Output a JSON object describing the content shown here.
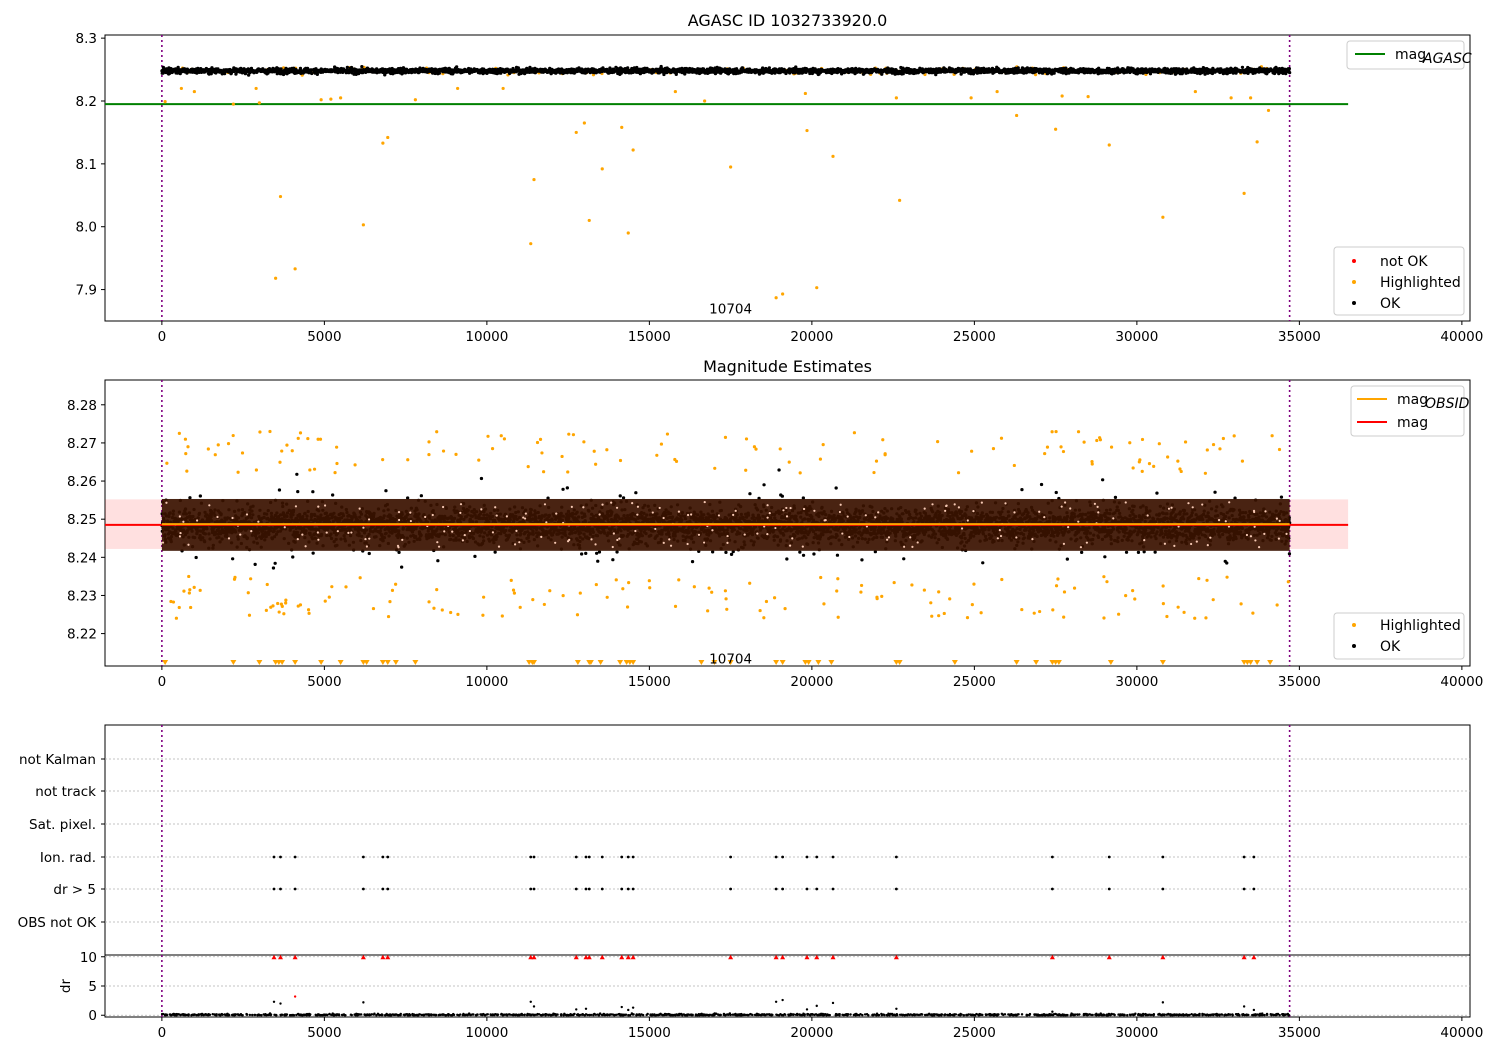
{
  "chart_data": [
    {
      "type": "scatter",
      "title": "AGASC ID 1032733920.0",
      "xlabel": "",
      "ylabel": "",
      "xlim": [
        -1750,
        40250
      ],
      "ylim": [
        7.85,
        8.305
      ],
      "xticks": [
        0,
        5000,
        10000,
        15000,
        20000,
        25000,
        30000,
        35000,
        40000
      ],
      "xtick_labels": [
        "0",
        "5000",
        "10000",
        "15000",
        "20000",
        "25000",
        "30000",
        "35000",
        "40000"
      ],
      "yticks": [
        7.9,
        8.0,
        8.1,
        8.2,
        8.3
      ],
      "ytick_labels": [
        "7.9",
        "8.0",
        "8.1",
        "8.2",
        "8.3"
      ],
      "grid": false,
      "obsid_boundaries": [
        0,
        34700
      ],
      "obsid_label": "10704",
      "obsid_label_at": [
        17500,
        7.87
      ],
      "mag_agasc": 8.195,
      "mag_agasc_x_range": [
        -1750,
        36500
      ],
      "ok_band": {
        "x_range": [
          0,
          34700
        ],
        "center": 8.248,
        "spread": 0.009
      },
      "highlighted_points": [
        [
          3500,
          7.918
        ],
        [
          4100,
          7.933
        ],
        [
          3650,
          8.048
        ],
        [
          6200,
          8.003
        ],
        [
          6800,
          8.133
        ],
        [
          6950,
          8.142
        ],
        [
          11350,
          7.973
        ],
        [
          11450,
          8.075
        ],
        [
          12750,
          8.15
        ],
        [
          13000,
          8.165
        ],
        [
          13150,
          8.01
        ],
        [
          13550,
          8.092
        ],
        [
          14150,
          8.158
        ],
        [
          14350,
          7.99
        ],
        [
          14500,
          8.122
        ],
        [
          17500,
          8.095
        ],
        [
          18900,
          7.887
        ],
        [
          19100,
          7.893
        ],
        [
          19850,
          8.153
        ],
        [
          20150,
          7.903
        ],
        [
          20650,
          8.112
        ],
        [
          22600,
          8.205
        ],
        [
          22700,
          8.042
        ],
        [
          26300,
          8.177
        ],
        [
          27500,
          8.155
        ],
        [
          27700,
          8.208
        ],
        [
          29150,
          8.13
        ],
        [
          30800,
          8.015
        ],
        [
          33300,
          8.053
        ],
        [
          33500,
          8.205
        ],
        [
          33700,
          8.135
        ],
        [
          34050,
          8.185
        ],
        [
          4900,
          8.202
        ],
        [
          5500,
          8.205
        ],
        [
          5200,
          8.203
        ],
        [
          7800,
          8.202
        ],
        [
          2200,
          8.195
        ],
        [
          3000,
          8.197
        ],
        [
          24900,
          8.205
        ],
        [
          28500,
          8.207
        ],
        [
          100,
          8.199
        ],
        [
          600,
          8.22
        ],
        [
          1000,
          8.215
        ],
        [
          2900,
          8.22
        ],
        [
          9100,
          8.22
        ],
        [
          10500,
          8.22
        ],
        [
          15800,
          8.215
        ],
        [
          16700,
          8.2
        ],
        [
          19800,
          8.212
        ],
        [
          25700,
          8.215
        ],
        [
          31800,
          8.215
        ],
        [
          32900,
          8.205
        ]
      ],
      "legends": [
        {
          "entries": [
            {
              "label": "mag",
              "sub": "AGASC",
              "color": "#008000",
              "kind": "line"
            }
          ],
          "placement": "upper right"
        },
        {
          "entries": [
            {
              "label": "not OK",
              "color": "#ff0000",
              "kind": "dot"
            },
            {
              "label": "Highlighted",
              "color": "#ffa500",
              "kind": "dot"
            },
            {
              "label": "OK",
              "color": "#000000",
              "kind": "dot"
            }
          ],
          "placement": "lower right"
        }
      ]
    },
    {
      "type": "scatter",
      "title": "Magnitude Estimates",
      "xlabel": "",
      "ylabel": "",
      "xlim": [
        -1750,
        40250
      ],
      "ylim": [
        8.2115,
        8.2865
      ],
      "xticks": [
        0,
        5000,
        10000,
        15000,
        20000,
        25000,
        30000,
        35000,
        40000
      ],
      "xtick_labels": [
        "0",
        "5000",
        "10000",
        "15000",
        "20000",
        "25000",
        "30000",
        "35000",
        "40000"
      ],
      "yticks": [
        8.22,
        8.23,
        8.24,
        8.25,
        8.26,
        8.27,
        8.28
      ],
      "ytick_labels": [
        "8.22",
        "8.23",
        "8.24",
        "8.25",
        "8.26",
        "8.27",
        "8.28"
      ],
      "grid": false,
      "obsid_boundaries": [
        0,
        34700
      ],
      "obsid_label": "10704",
      "obsid_label_at": [
        17500,
        8.2135
      ],
      "mag_obsid": 8.2487,
      "mag": 8.2485,
      "mag_x_range": [
        -1750,
        36500
      ],
      "mag_band": [
        8.2422,
        8.2552
      ],
      "ok_band": {
        "x_range": [
          0,
          34700
        ],
        "center": 8.2485,
        "spread": 0.0085
      },
      "clipped_low_markers": [
        100,
        2200,
        3000,
        3500,
        3600,
        3700,
        4100,
        4900,
        5500,
        6200,
        6300,
        6800,
        6950,
        7200,
        7800,
        11300,
        11400,
        11450,
        12800,
        13150,
        13200,
        13500,
        14100,
        14300,
        14400,
        14500,
        16600,
        17000,
        17500,
        18900,
        19100,
        19800,
        19900,
        20200,
        20600,
        22600,
        22700,
        24400,
        26300,
        26900,
        27400,
        27500,
        27600,
        29200,
        30800,
        33300,
        33400,
        33500,
        33700,
        34100
      ],
      "legends": [
        {
          "entries": [
            {
              "label": "mag",
              "sub": "OBSID",
              "color": "#ffa500",
              "kind": "line"
            },
            {
              "label": "mag",
              "sub": "",
              "color": "#ff0000",
              "kind": "line"
            }
          ],
          "placement": "upper right"
        },
        {
          "entries": [
            {
              "label": "Highlighted",
              "color": "#ffa500",
              "kind": "dot"
            },
            {
              "label": "OK",
              "color": "#000000",
              "kind": "dot"
            }
          ],
          "placement": "lower right"
        }
      ]
    },
    {
      "type": "scatter",
      "title": "",
      "xlabel": "",
      "ylabel": "",
      "xlim": [
        -1750,
        40250
      ],
      "categories": [
        "not Kalman",
        "not track",
        "Sat. pixel.",
        "Ion. rad.",
        "dr > 5",
        "OBS not OK"
      ],
      "grid": true,
      "obsid_boundaries": [
        0,
        34700
      ],
      "flag_times": [
        3450,
        3650,
        4100,
        6200,
        6800,
        6950,
        11350,
        11450,
        12750,
        13050,
        13150,
        13550,
        14150,
        14350,
        14500,
        17500,
        18900,
        19100,
        19850,
        20150,
        20650,
        22600,
        27400,
        29150,
        30800,
        33300,
        33600
      ],
      "flags": {
        "Ion. rad.": "flag_times",
        "dr > 5": "flag_times"
      }
    },
    {
      "type": "scatter",
      "title": "",
      "xlabel": "",
      "ylabel": "dr",
      "xlim": [
        -1750,
        40250
      ],
      "ylim": [
        -0.3,
        10.3
      ],
      "xticks": [
        0,
        5000,
        10000,
        15000,
        20000,
        25000,
        30000,
        35000,
        40000
      ],
      "xtick_labels": [
        "0",
        "5000",
        "10000",
        "15000",
        "20000",
        "25000",
        "30000",
        "35000",
        "40000"
      ],
      "yticks": [
        0,
        5,
        10
      ],
      "ytick_labels": [
        "0",
        "5",
        "10"
      ],
      "grid": true,
      "obsid_boundaries": [
        0,
        34700
      ],
      "clipped_high_at": 10,
      "clipped_high_markers": [
        3450,
        3650,
        4100,
        6200,
        6800,
        6950,
        11350,
        11450,
        12750,
        13050,
        13150,
        13550,
        14150,
        14350,
        14500,
        17500,
        18900,
        19100,
        19850,
        20150,
        20650,
        22600,
        27400,
        29150,
        30800,
        33300,
        33600
      ],
      "dr_points": [
        [
          3450,
          2.3
        ],
        [
          3650,
          2.0
        ],
        [
          4100,
          3.2
        ],
        [
          6200,
          2.2
        ],
        [
          11350,
          2.3
        ],
        [
          11450,
          1.5
        ],
        [
          12750,
          1.0
        ],
        [
          13050,
          1.1
        ],
        [
          14150,
          1.4
        ],
        [
          14350,
          0.9
        ],
        [
          14500,
          1.3
        ],
        [
          18900,
          2.3
        ],
        [
          19100,
          2.6
        ],
        [
          19850,
          1.0
        ],
        [
          20150,
          1.6
        ],
        [
          20650,
          2.1
        ],
        [
          22600,
          1.1
        ],
        [
          27400,
          0.6
        ],
        [
          30800,
          2.2
        ],
        [
          33300,
          1.5
        ],
        [
          33600,
          0.9
        ]
      ]
    }
  ]
}
